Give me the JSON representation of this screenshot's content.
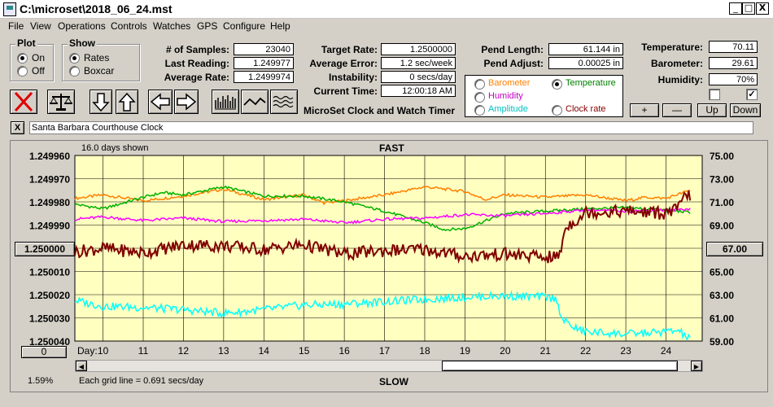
{
  "window": {
    "title": "C:\\microset\\2018_06_24.mst",
    "min": "_",
    "max": "□",
    "close": "X"
  },
  "menu": [
    "File",
    "View",
    "Operations",
    "Controls",
    "Watches",
    "GPS",
    "Configure",
    "Help"
  ],
  "plot_group": {
    "title": "Plot",
    "options": [
      "On",
      "Off"
    ],
    "selected": "On"
  },
  "show_group": {
    "title": "Show",
    "options": [
      "Rates",
      "Boxcar"
    ],
    "selected": "Rates"
  },
  "stats": {
    "samples_label": "# of Samples:",
    "samples": "23040",
    "last_reading_label": "Last Reading:",
    "last_reading": "1.249977",
    "avg_rate_label": "Average Rate:",
    "avg_rate": "1.2499974",
    "target_rate_label": "Target Rate:",
    "target_rate": "1.2500000",
    "avg_error_label": "Average Error:",
    "avg_error": "1.2 sec/week",
    "instability_label": "Instability:",
    "instability": "0 secs/day",
    "current_time_label": "Current Time:",
    "current_time": "12:00:18 AM",
    "pend_length_label": "Pend Length:",
    "pend_length": "61.144 in",
    "pend_adjust_label": "Pend Adjust:",
    "pend_adjust": "0.00025 in",
    "temperature_label": "Temperature:",
    "temperature": "70.11",
    "barometer_label": "Barometer:",
    "barometer": "29.61",
    "humidity_label": "Humidity:",
    "humidity": "70%"
  },
  "app_caption": "MicroSet Clock and Watch Timer",
  "legend": [
    {
      "name": "Barometer",
      "color": "#ff8000",
      "selected": false
    },
    {
      "name": "Temperature",
      "color": "#008000",
      "selected": true
    },
    {
      "name": "Humidity",
      "color": "#c000c0",
      "selected": false
    },
    {
      "name": "Amplitude",
      "color": "#00c0c0",
      "selected": false
    },
    {
      "name": "Clock rate",
      "color": "#800000",
      "selected": false
    }
  ],
  "adjust_buttons": {
    "plus": "+",
    "minus": "—",
    "up": "Up",
    "down": "Down"
  },
  "checkboxes": [
    false,
    true
  ],
  "clock_name": "Santa Barbara Courthouse Clock",
  "close_x": "X",
  "plot": {
    "days_shown": "16.0 days shown",
    "top_label": "FAST",
    "bottom_label": "SLOW",
    "grid_note": "Each grid line = 0.691 secs/day",
    "percent": "1.59%",
    "left_button": "1.250000",
    "right_button": "67.00",
    "zero_button": "0",
    "day_label": "Day:"
  },
  "chart_data": {
    "type": "line",
    "x_ticks": [
      "10",
      "11",
      "12",
      "13",
      "14",
      "15",
      "16",
      "17",
      "18",
      "19",
      "20",
      "21",
      "22",
      "23",
      "24"
    ],
    "x_range": [
      9.3,
      24.9
    ],
    "y_left_ticks": [
      "1.249960",
      "1.249970",
      "1.249980",
      "1.249990",
      "1.250000",
      "1.250010",
      "1.250020",
      "1.250030",
      "1.250040"
    ],
    "y_left_range": [
      1.24996,
      1.25004
    ],
    "y_right_ticks": [
      "75.00",
      "73.00",
      "71.00",
      "69.00",
      "67.00",
      "65.00",
      "63.00",
      "61.00",
      "59.00"
    ],
    "y_right_range": [
      59,
      75
    ],
    "grid": true,
    "series": [
      {
        "name": "Barometer",
        "color": "#ff8000",
        "x": [
          9.3,
          10,
          11,
          12,
          13,
          14,
          15,
          15.5,
          16,
          17,
          18,
          19,
          19.5,
          20,
          21,
          22,
          23,
          23.5,
          24,
          24.6
        ],
        "y": [
          71.3,
          71.6,
          71.1,
          71.5,
          72.1,
          71.2,
          71.6,
          70.9,
          71.1,
          71.6,
          72.3,
          71.9,
          71.2,
          71.6,
          71.4,
          71.6,
          71.1,
          71.4,
          71.3,
          72
        ]
      },
      {
        "name": "Temperature",
        "color": "#00b000",
        "x": [
          9.3,
          10,
          11,
          11.5,
          12,
          13,
          13.5,
          14,
          15,
          16,
          17,
          17.5,
          18,
          18.5,
          19,
          20,
          21,
          22,
          23,
          24,
          24.6
        ],
        "y": [
          70.8,
          70.4,
          71.4,
          71.8,
          71.6,
          72.3,
          71.9,
          71.5,
          71.5,
          71.0,
          70.2,
          69.7,
          69.2,
          68.6,
          68.7,
          70.0,
          70.2,
          70.4,
          70.5,
          70.3,
          70.1
        ]
      },
      {
        "name": "Humidity",
        "color": "#ff00ff",
        "x": [
          9.3,
          10,
          11,
          12,
          13,
          14,
          15,
          16,
          17,
          18,
          19,
          20,
          21,
          22,
          23,
          24,
          24.6
        ],
        "y": [
          69.5,
          69.7,
          69.4,
          69.6,
          69.3,
          69.4,
          69.5,
          69.2,
          69.5,
          69.6,
          69.9,
          69.8,
          70.0,
          70.3,
          70.2,
          70.3,
          70.4
        ]
      },
      {
        "name": "Amplitude",
        "color": "#00ffff",
        "x": [
          9.3,
          10,
          11,
          12,
          13,
          14,
          15,
          16,
          17,
          18,
          19,
          20,
          21,
          21.3,
          21.4,
          21.8,
          22,
          23,
          24,
          24.3,
          24.5,
          24.6
        ],
        "y": [
          62.5,
          62.0,
          61.9,
          61.7,
          61.4,
          61.7,
          62.1,
          62.2,
          62.4,
          62.6,
          62.8,
          62.9,
          62.8,
          62.6,
          60.9,
          60.0,
          59.8,
          59.6,
          59.8,
          59.9,
          59.4,
          59.1
        ]
      },
      {
        "name": "Clock rate",
        "color": "#800000",
        "x": [
          9.3,
          10,
          11,
          12,
          13,
          14,
          15,
          16,
          17,
          18,
          19,
          20,
          21,
          21.35,
          21.5,
          21.8,
          22,
          23,
          24,
          24.3,
          24.5,
          24.6
        ],
        "y": [
          66.7,
          67.0,
          66.6,
          67.3,
          67.2,
          66.9,
          67.3,
          66.5,
          66.8,
          66.9,
          66.3,
          66.5,
          66.2,
          66.3,
          68.8,
          69.5,
          70.1,
          70.2,
          70.0,
          70.4,
          71.7,
          71.5
        ]
      }
    ]
  }
}
